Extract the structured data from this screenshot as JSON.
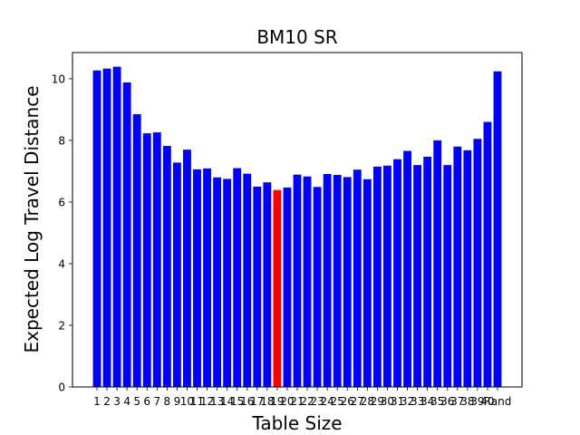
{
  "chart_data": {
    "type": "bar",
    "title": "BM10 SR",
    "xlabel": "Table Size",
    "ylabel": "Expected Log Travel Distance",
    "categories": [
      "1",
      "2",
      "3",
      "4",
      "5",
      "6",
      "7",
      "8",
      "9",
      "10",
      "11",
      "12",
      "13",
      "14",
      "15",
      "16",
      "17",
      "18",
      "19",
      "20",
      "21",
      "22",
      "23",
      "24",
      "25",
      "26",
      "27",
      "28",
      "29",
      "30",
      "31",
      "32",
      "33",
      "34",
      "35",
      "36",
      "37",
      "38",
      "39",
      "40",
      "Rand"
    ],
    "values": [
      10.27,
      10.33,
      10.39,
      9.88,
      8.85,
      8.23,
      8.26,
      7.82,
      7.28,
      7.7,
      7.06,
      7.09,
      6.8,
      6.75,
      7.1,
      6.92,
      6.5,
      6.64,
      6.39,
      6.47,
      6.89,
      6.83,
      6.49,
      6.91,
      6.88,
      6.81,
      7.05,
      6.74,
      7.15,
      7.18,
      7.39,
      7.66,
      7.2,
      7.47,
      8.0,
      7.2,
      7.8,
      7.68,
      8.05,
      8.6,
      10.24
    ],
    "highlight_category": "19",
    "colors": {
      "bar": "#0000ff",
      "highlight": "#ff0000"
    },
    "ylim": [
      0,
      10.85
    ],
    "yticks": [
      0,
      2,
      4,
      6,
      8,
      10
    ],
    "grid": false
  }
}
